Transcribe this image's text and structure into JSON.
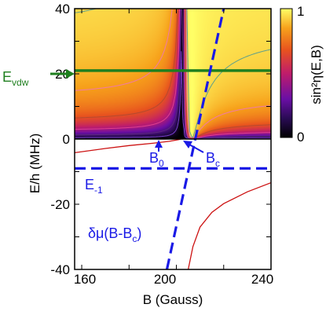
{
  "chart_data": {
    "type": "heatmap",
    "title": "",
    "xlabel": "B (Gauss)",
    "ylabel": "E/h (MHz)",
    "xlim": [
      157,
      240
    ],
    "ylim": [
      -40,
      40
    ],
    "x_ticks": [
      160,
      180,
      200,
      220,
      240
    ],
    "x_tick_labels": [
      "160",
      "200",
      "240"
    ],
    "y_ticks": [
      -40,
      -30,
      -20,
      -10,
      0,
      10,
      20,
      30,
      40
    ],
    "y_tick_labels": [
      "-40",
      "-20",
      "0",
      "20",
      "40"
    ],
    "heatmap": {
      "region": "E > 0",
      "quantity": "sin²η(E,B)",
      "colorbar": {
        "label": "sin²η(E,B)",
        "min": 0,
        "max": 1,
        "tick_labels": [
          "0",
          "1"
        ],
        "colors": [
          "#000000",
          "#2a0b55",
          "#6a0fa5",
          "#c01d6a",
          "#e8531e",
          "#f7a21b",
          "#ffff66"
        ]
      },
      "node_B": 202,
      "pole_B": 207
    },
    "lines": [
      {
        "name": "E_vdw",
        "kind": "horizontal",
        "y": 21,
        "color": "#1f7f1f"
      },
      {
        "name": "E_-1",
        "kind": "horizontal-dashed",
        "y": -9,
        "color": "#1a1ae6"
      },
      {
        "name": "δμ(B-B_c)",
        "kind": "dashed",
        "color": "#1a1ae6",
        "points": [
          [
            196,
            -40
          ],
          [
            220,
            40
          ]
        ]
      }
    ],
    "bound_state": {
      "color": "#cc1111",
      "upper_branch": [
        [
          157,
          -4.2
        ],
        [
          170,
          -2.9
        ],
        [
          180,
          -2.0
        ],
        [
          190,
          -1.3
        ],
        [
          197,
          -0.7
        ],
        [
          201,
          -0.2
        ],
        [
          202,
          0
        ]
      ],
      "lower_branch": [
        [
          205,
          -40
        ],
        [
          207,
          -33
        ],
        [
          210,
          -27
        ],
        [
          215,
          -22.5
        ],
        [
          220,
          -19.8
        ],
        [
          230,
          -16.2
        ],
        [
          240,
          -13.4
        ]
      ]
    },
    "annotations": {
      "evdw": "E",
      "evdw_sub": "vdw",
      "e_minus_one": "E",
      "e_minus_one_sub": "-1",
      "b0": "B",
      "b0_sub": "0",
      "bc": "B",
      "bc_sub": "c",
      "line_label": "δμ(B-B",
      "line_label_sub": "c",
      "line_label_close": ")"
    }
  }
}
